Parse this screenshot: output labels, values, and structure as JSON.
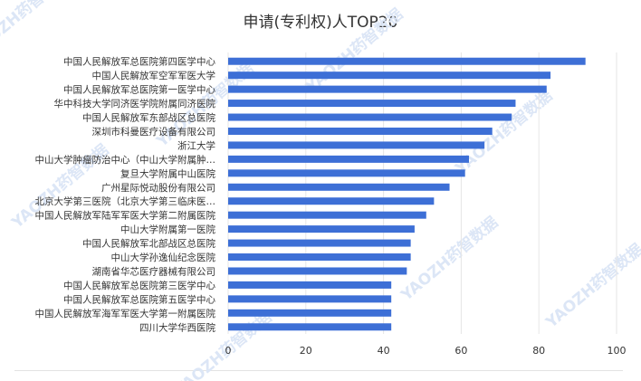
{
  "colors": {
    "bar": "#3d6fd6",
    "grid": "#e6e6e6",
    "text": "#333333",
    "watermark": "#dce6f6"
  },
  "watermark": {
    "text": "YAOZH药智数据"
  },
  "chart_data": {
    "type": "bar",
    "orientation": "horizontal",
    "title": "申请(专利权)人TOP20",
    "xlabel": "",
    "ylabel": "",
    "xlim": [
      0,
      100
    ],
    "xticks": [
      "0",
      "20",
      "40",
      "60",
      "80",
      "100"
    ],
    "grid": true,
    "categories": [
      "中国人民解放军总医院第四医学中心",
      "中国人民解放军空军军医大学",
      "中国人民解放军总医院第一医学中心",
      "华中科技大学同济医学院附属同济医院",
      "中国人民解放军东部战区总医院",
      "深圳市科曼医疗设备有限公司",
      "浙江大学",
      "中山大学肿瘤防治中心（中山大学附属肿…",
      "复旦大学附属中山医院",
      "广州星际悦动股份有限公司",
      "北京大学第三医院（北京大学第三临床医…",
      "中国人民解放军陆军军医大学第二附属医院",
      "中山大学附属第一医院",
      "中国人民解放军北部战区总医院",
      "中山大学孙逸仙纪念医院",
      "湖南省华芯医疗器械有限公司",
      "中国人民解放军总医院第三医学中心",
      "中国人民解放军总医院第五医学中心",
      "中国人民解放军海军军医大学第一附属医院",
      "四川大学华西医院"
    ],
    "values": [
      92,
      83,
      82,
      74,
      73,
      68,
      66,
      62,
      61,
      57,
      53,
      51,
      48,
      47,
      47,
      46,
      42,
      42,
      42,
      42
    ]
  }
}
